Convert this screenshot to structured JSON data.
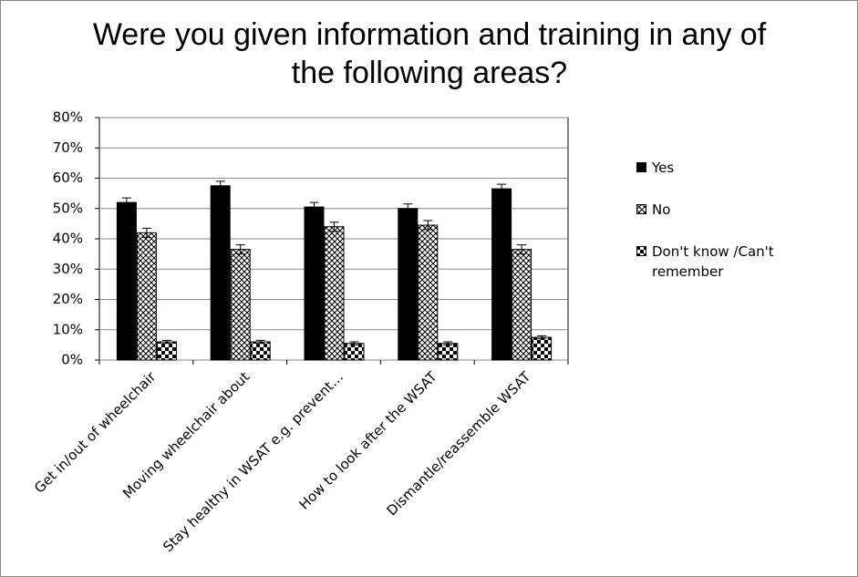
{
  "chart_data": {
    "type": "bar",
    "title": "Were you given information and training in any of the following areas?",
    "categories": [
      "Get in/out of wheelchair",
      "Moving wheelchair about",
      "Stay healthy in WSAT e.g. prevent…",
      "How to look after the WSAT",
      "Dismantle/reassemble WSAT"
    ],
    "series": [
      {
        "name": "Yes",
        "color": "#000000",
        "values": [
          52,
          57.5,
          50.5,
          50,
          56.5
        ],
        "errors": [
          1.5,
          1.5,
          1.5,
          1.5,
          1.5
        ]
      },
      {
        "name": "No",
        "color": "#000000",
        "values": [
          42,
          36.5,
          44,
          44.5,
          36.5
        ],
        "errors": [
          1.5,
          1.5,
          1.5,
          1.5,
          1.5
        ]
      },
      {
        "name": "Don't know /Can't remember",
        "color": "#000000",
        "values": [
          6,
          6,
          5.5,
          5.5,
          7.5
        ],
        "errors": [
          0.5,
          0.5,
          0.5,
          0.5,
          0.5
        ]
      }
    ],
    "ylim": [
      0,
      80
    ],
    "yticks": [
      {
        "value": 0,
        "label": "0%"
      },
      {
        "value": 10,
        "label": "10%"
      },
      {
        "value": 20,
        "label": "20%"
      },
      {
        "value": 30,
        "label": "30%"
      },
      {
        "value": 40,
        "label": "40%"
      },
      {
        "value": 50,
        "label": "50%"
      },
      {
        "value": 60,
        "label": "60%"
      },
      {
        "value": 70,
        "label": "70%"
      },
      {
        "value": 80,
        "label": "80%"
      }
    ],
    "grid": true,
    "legend": "right"
  }
}
